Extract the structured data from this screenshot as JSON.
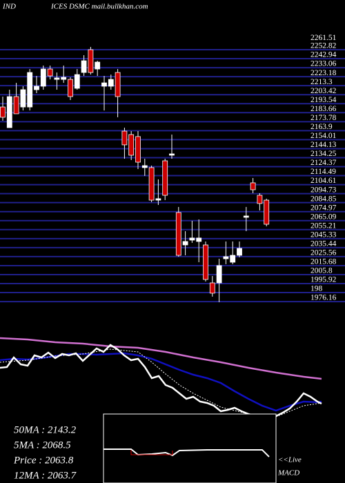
{
  "chart_data": {
    "type": "candlestick",
    "title": "IND",
    "subtitle": "ICES DSMC mail.bullkhan.com",
    "open": [
      2189.9,
      2167.2,
      2201.3,
      2189.9,
      2189.9,
      2208.9,
      2212.7,
      2231.6,
      2220.2,
      2220.2,
      2220.2,
      2210.4,
      2227.8,
      2252.8,
      2231.6,
      2212.7,
      2212.7,
      2227.8,
      2163.4,
      2159.6,
      2157.4,
      2123.3,
      2123.3,
      2087.6,
      2130.8,
      2136.9,
      2074.0,
      2038.4,
      2043.7,
      2042.2,
      2038.4,
      1996.7,
      1996.7,
      2023.2,
      2019.4,
      2027.0,
      2068.7,
      2106.6,
      2092.9,
      2087.6
    ],
    "high": [
      2201.3,
      2208.9,
      2216.4,
      2212.7,
      2231.6,
      2224.0,
      2235.4,
      2235.4,
      2227.8,
      2235.4,
      2222.5,
      2231.6,
      2246.8,
      2255.9,
      2240.7,
      2224.0,
      2225.5,
      2231.6,
      2167.2,
      2163.4,
      2163.4,
      2133.1,
      2125.5,
      2110.4,
      2133.1,
      2159.6,
      2080.1,
      2053.5,
      2064.9,
      2066.4,
      2042.2,
      2004.3,
      2023.2,
      2042.2,
      2042.2,
      2042.2,
      2080.1,
      2111.9,
      2095.2,
      2089.2
    ],
    "low": [
      2174.8,
      2167.2,
      2182.4,
      2186.1,
      2186.1,
      2205.1,
      2208.9,
      2220.2,
      2208.9,
      2216.4,
      2197.5,
      2208.9,
      2224.0,
      2225.5,
      2224.0,
      2186.1,
      2208.9,
      2178.6,
      2133.1,
      2131.6,
      2121.7,
      2114.2,
      2085.4,
      2082.3,
      2087.6,
      2133.1,
      2025.5,
      2027.0,
      2040.7,
      2019.4,
      1998.2,
      1981.6,
      1975.5,
      2017.2,
      2017.2,
      2024.8,
      2053.5,
      2095.2,
      2076.3,
      2058.8
    ],
    "close": [
      2178.6,
      2201.3,
      2182.4,
      2208.9,
      2227.8,
      2212.7,
      2231.6,
      2224.0,
      2221.8,
      2222.5,
      2201.3,
      2225.5,
      2240.7,
      2227.8,
      2239.2,
      2216.4,
      2220.2,
      2201.3,
      2148.3,
      2136.9,
      2129.3,
      2125.5,
      2087.6,
      2089.2,
      2092.9,
      2138.4,
      2027.0,
      2042.2,
      2046.0,
      2046.0,
      2000.5,
      1985.4,
      2015.7,
      2025.5,
      2027.0,
      2034.6,
      2070.2,
      2099.0,
      2083.9,
      2061.1
    ],
    "up_color": "#ffffff",
    "down_color": "#cc0000",
    "grid_color": "#20208c",
    "grid": true,
    "ylim": [
      1958.8,
      2307.4
    ],
    "yticks": [
      2261.51,
      2252.82,
      2242.94,
      2233.06,
      2223.18,
      2213.3,
      2203.42,
      2193.54,
      2183.66,
      2173.78,
      2163.9,
      2154.01,
      2144.13,
      2134.25,
      2124.37,
      2114.49,
      2104.61,
      2094.73,
      2084.85,
      2074.97,
      2065.09,
      2055.21,
      2045.33,
      2035.44,
      2025.56,
      2015.68,
      2005.8,
      1995.92,
      {
        "value": 1986.04,
        "label": "198"
      },
      1976.16
    ]
  },
  "indicators": {
    "labels": [
      "50MA : 2143.2",
      "5MA : 2068.5",
      "Price  : 2063.8",
      "12MA : 2063.7"
    ],
    "live": "<<Live",
    "macd": "MACD"
  }
}
